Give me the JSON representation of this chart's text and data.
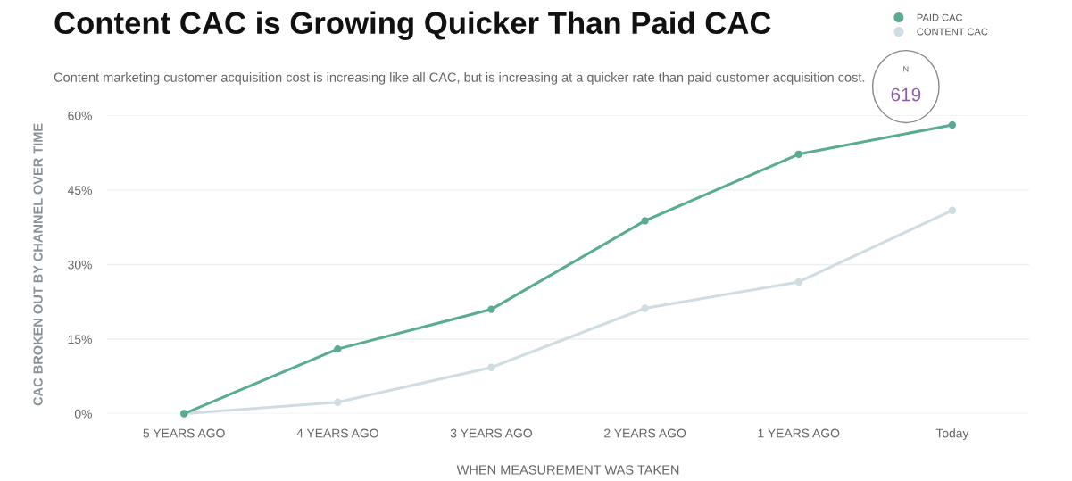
{
  "chart_data": {
    "type": "line",
    "title": "Content CAC is Growing Quicker Than Paid CAC",
    "subtitle": "Content marketing customer acquisition cost is increasing like all CAC, but is increasing at a quicker rate than paid customer acquisition cost.",
    "xlabel": "WHEN MEASUREMENT WAS TAKEN",
    "ylabel": "CAC BROKEN OUT BY CHANNEL OVER TIME",
    "categories": [
      "5 YEARS AGO",
      "4 YEARS AGO",
      "3 YEARS AGO",
      "2 YEARS AGO",
      "1 YEARS AGO",
      "Today"
    ],
    "series": [
      {
        "name": "PAID CAC",
        "color": "#5aab94",
        "values": [
          0,
          13,
          21,
          38.8,
          52.2,
          58.1
        ]
      },
      {
        "name": "CONTENT CAC",
        "color": "#cfdde3",
        "values": [
          0,
          2.3,
          9.3,
          21.2,
          26.5,
          40.9
        ]
      }
    ],
    "ylim": [
      0,
      60
    ],
    "yticks": [
      {
        "value": 0,
        "label": "0%"
      },
      {
        "value": 15,
        "label": "15%"
      },
      {
        "value": 30,
        "label": "30%"
      },
      {
        "value": 45,
        "label": "45%"
      },
      {
        "value": 60,
        "label": "60%"
      }
    ],
    "grid": "y",
    "legend": "top right",
    "marker": "circle",
    "line_style": "solid",
    "annotations": [
      "N",
      "619"
    ]
  }
}
